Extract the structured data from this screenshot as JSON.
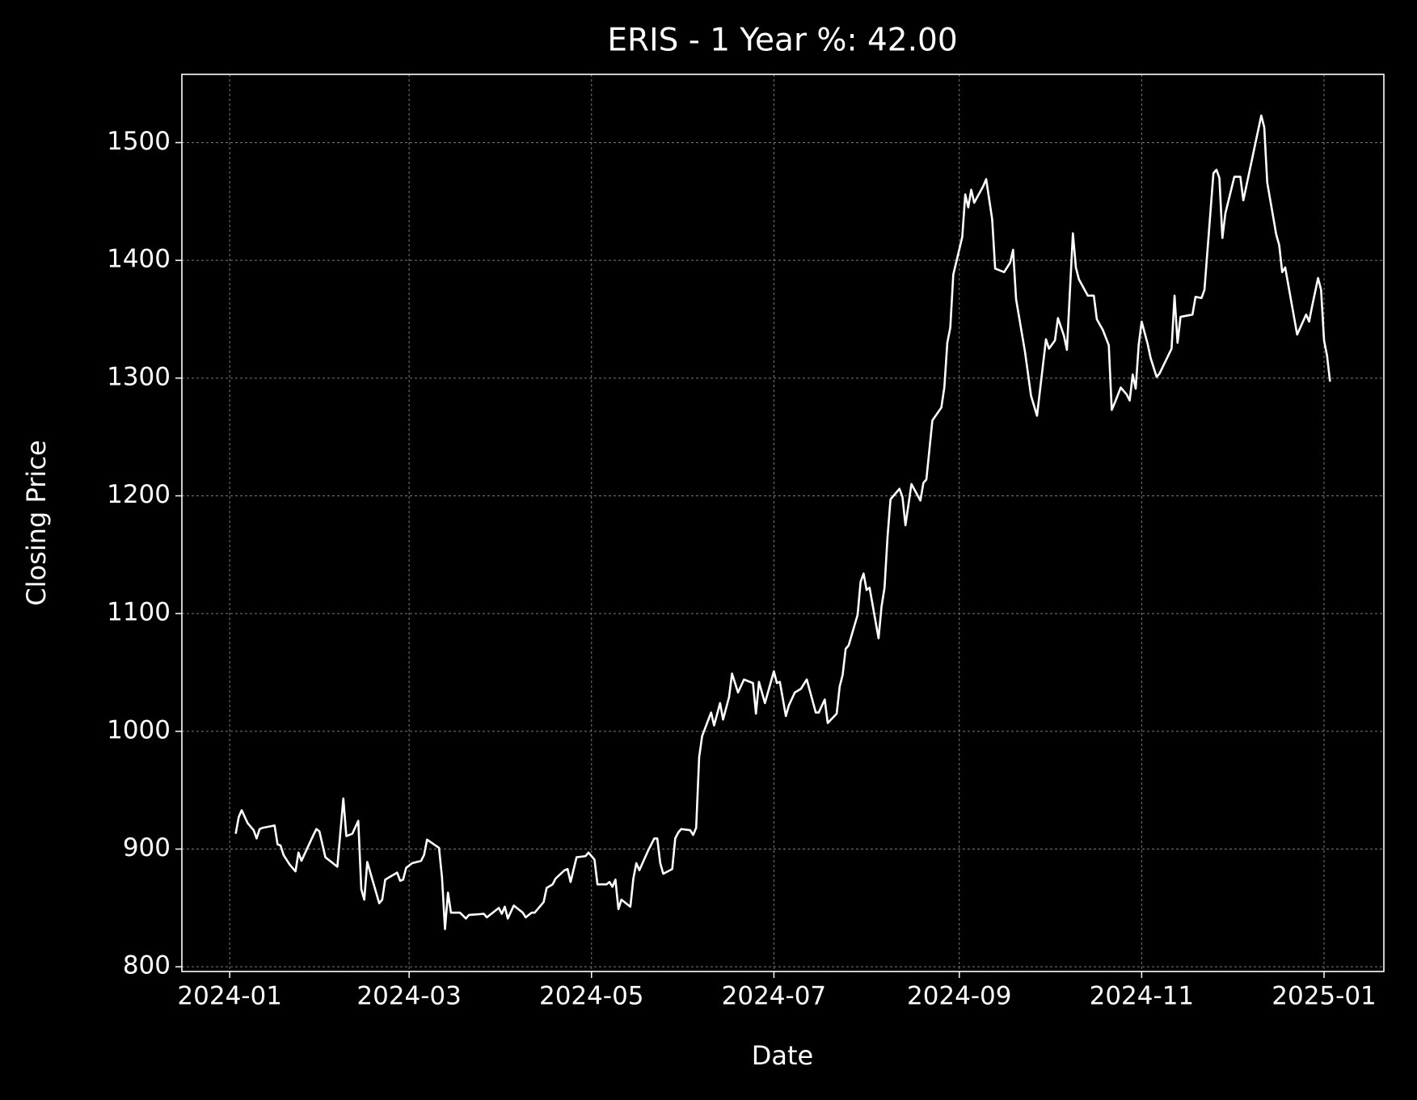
{
  "chart_data": {
    "type": "line",
    "title": "ERIS - 1 Year %: 42.00",
    "x_label": "Date",
    "y_label": "Closing Price",
    "background": "#000000",
    "grid": true,
    "xlim": [
      "2023-12-16",
      "2025-01-21"
    ],
    "xticks": [
      {
        "value": "2024-01-01",
        "label": "2024-01"
      },
      {
        "value": "2024-03-01",
        "label": "2024-03"
      },
      {
        "value": "2024-05-01",
        "label": "2024-05"
      },
      {
        "value": "2024-07-01",
        "label": "2024-07"
      },
      {
        "value": "2024-09-01",
        "label": "2024-09"
      },
      {
        "value": "2024-11-01",
        "label": "2024-11"
      },
      {
        "value": "2025-01-01",
        "label": "2025-01"
      }
    ],
    "ylim": [
      796,
      1558
    ],
    "yticks": [
      800,
      900,
      1000,
      1100,
      1200,
      1300,
      1400,
      1500
    ],
    "x": [
      "2024-01-03",
      "2024-01-04",
      "2024-01-05",
      "2024-01-07",
      "2024-01-09",
      "2024-01-10",
      "2024-01-11",
      "2024-01-12",
      "2024-01-16",
      "2024-01-17",
      "2024-01-18",
      "2024-01-19",
      "2024-01-21",
      "2024-01-23",
      "2024-01-24",
      "2024-01-25",
      "2024-01-29",
      "2024-01-30",
      "2024-01-31",
      "2024-02-02",
      "2024-02-06",
      "2024-02-08",
      "2024-02-09",
      "2024-02-11",
      "2024-02-13",
      "2024-02-14",
      "2024-02-15",
      "2024-02-16",
      "2024-02-20",
      "2024-02-21",
      "2024-02-22",
      "2024-02-26",
      "2024-02-27",
      "2024-02-28",
      "2024-02-29",
      "2024-03-02",
      "2024-03-05",
      "2024-03-06",
      "2024-03-07",
      "2024-03-11",
      "2024-03-12",
      "2024-03-13",
      "2024-03-14",
      "2024-03-15",
      "2024-03-18",
      "2024-03-20",
      "2024-03-21",
      "2024-03-26",
      "2024-03-27",
      "2024-03-31",
      "2024-04-01",
      "2024-04-02",
      "2024-04-03",
      "2024-04-05",
      "2024-04-08",
      "2024-04-09",
      "2024-04-11",
      "2024-04-12",
      "2024-04-15",
      "2024-04-16",
      "2024-04-18",
      "2024-04-19",
      "2024-04-22",
      "2024-04-23",
      "2024-04-24",
      "2024-04-26",
      "2024-04-29",
      "2024-04-30",
      "2024-05-02",
      "2024-05-03",
      "2024-05-06",
      "2024-05-07",
      "2024-05-08",
      "2024-05-09",
      "2024-05-10",
      "2024-05-11",
      "2024-05-14",
      "2024-05-15",
      "2024-05-16",
      "2024-05-17",
      "2024-05-20",
      "2024-05-22",
      "2024-05-23",
      "2024-05-24",
      "2024-05-25",
      "2024-05-28",
      "2024-05-29",
      "2024-05-30",
      "2024-05-31",
      "2024-06-03",
      "2024-06-04",
      "2024-06-05",
      "2024-06-06",
      "2024-06-07",
      "2024-06-10",
      "2024-06-11",
      "2024-06-13",
      "2024-06-14",
      "2024-06-16",
      "2024-06-17",
      "2024-06-19",
      "2024-06-21",
      "2024-06-24",
      "2024-06-25",
      "2024-06-26",
      "2024-06-28",
      "2024-07-01",
      "2024-07-02",
      "2024-07-03",
      "2024-07-05",
      "2024-07-06",
      "2024-07-08",
      "2024-07-10",
      "2024-07-12",
      "2024-07-15",
      "2024-07-16",
      "2024-07-18",
      "2024-07-19",
      "2024-07-22",
      "2024-07-23",
      "2024-07-24",
      "2024-07-25",
      "2024-07-26",
      "2024-07-29",
      "2024-07-30",
      "2024-07-31",
      "2024-08-01",
      "2024-08-02",
      "2024-08-05",
      "2024-08-06",
      "2024-08-07",
      "2024-08-08",
      "2024-08-09",
      "2024-08-12",
      "2024-08-13",
      "2024-08-14",
      "2024-08-16",
      "2024-08-19",
      "2024-08-20",
      "2024-08-21",
      "2024-08-23",
      "2024-08-26",
      "2024-08-27",
      "2024-08-28",
      "2024-08-29",
      "2024-08-30",
      "2024-09-02",
      "2024-09-03",
      "2024-09-04",
      "2024-09-05",
      "2024-09-06",
      "2024-09-09",
      "2024-09-10",
      "2024-09-12",
      "2024-09-13",
      "2024-09-16",
      "2024-09-18",
      "2024-09-19",
      "2024-09-20",
      "2024-09-23",
      "2024-09-25",
      "2024-09-27",
      "2024-09-30",
      "2024-10-01",
      "2024-10-03",
      "2024-10-04",
      "2024-10-06",
      "2024-10-07",
      "2024-10-09",
      "2024-10-10",
      "2024-10-11",
      "2024-10-14",
      "2024-10-16",
      "2024-10-17",
      "2024-10-19",
      "2024-10-21",
      "2024-10-22",
      "2024-10-23",
      "2024-10-25",
      "2024-10-27",
      "2024-10-28",
      "2024-10-29",
      "2024-10-30",
      "2024-10-31",
      "2024-11-01",
      "2024-11-03",
      "2024-11-04",
      "2024-11-06",
      "2024-11-07",
      "2024-11-11",
      "2024-11-12",
      "2024-11-13",
      "2024-11-14",
      "2024-11-18",
      "2024-11-19",
      "2024-11-21",
      "2024-11-22",
      "2024-11-25",
      "2024-11-26",
      "2024-11-27",
      "2024-11-28",
      "2024-11-29",
      "2024-12-02",
      "2024-12-04",
      "2024-12-05",
      "2024-12-09",
      "2024-12-11",
      "2024-12-12",
      "2024-12-13",
      "2024-12-16",
      "2024-12-17",
      "2024-12-18",
      "2024-12-19",
      "2024-12-23",
      "2024-12-26",
      "2024-12-27",
      "2024-12-28",
      "2024-12-30",
      "2024-12-31",
      "2025-01-01",
      "2025-01-02",
      "2025-01-03"
    ],
    "series": [
      {
        "name": "Closing Price",
        "color": "#ffffff",
        "values": [
          913,
          927,
          933,
          922,
          916,
          909,
          917,
          918,
          920,
          904,
          903,
          895,
          887,
          881,
          897,
          890,
          912,
          917,
          915,
          893,
          885,
          943,
          911,
          913,
          924,
          866,
          857,
          889,
          854,
          857,
          874,
          880,
          873,
          874,
          884,
          888,
          890,
          895,
          908,
          901,
          876,
          832,
          863,
          846,
          846,
          841,
          844,
          845,
          842,
          850,
          845,
          851,
          841,
          852,
          846,
          842,
          846,
          846,
          855,
          867,
          870,
          875,
          882,
          883,
          872,
          893,
          894,
          897,
          891,
          870,
          870,
          872,
          868,
          874,
          849,
          857,
          851,
          875,
          888,
          882,
          899,
          909,
          909,
          888,
          879,
          883,
          909,
          914,
          917,
          916,
          912,
          918,
          978,
          996,
          1016,
          1005,
          1024,
          1010,
          1029,
          1049,
          1033,
          1044,
          1041,
          1015,
          1042,
          1024,
          1051,
          1041,
          1042,
          1013,
          1022,
          1033,
          1036,
          1044,
          1016,
          1016,
          1027,
          1007,
          1015,
          1038,
          1048,
          1070,
          1073,
          1099,
          1127,
          1134,
          1120,
          1122,
          1079,
          1106,
          1122,
          1165,
          1197,
          1206,
          1199,
          1175,
          1210,
          1196,
          1211,
          1214,
          1264,
          1275,
          1292,
          1330,
          1343,
          1388,
          1420,
          1456,
          1445,
          1460,
          1449,
          1463,
          1469,
          1435,
          1393,
          1390,
          1398,
          1409,
          1367,
          1322,
          1285,
          1268,
          1333,
          1325,
          1332,
          1351,
          1336,
          1324,
          1423,
          1394,
          1384,
          1370,
          1370,
          1350,
          1341,
          1328,
          1273,
          1279,
          1292,
          1286,
          1281,
          1303,
          1291,
          1328,
          1348,
          1329,
          1317,
          1301,
          1304,
          1325,
          1370,
          1330,
          1352,
          1354,
          1369,
          1368,
          1375,
          1474,
          1477,
          1470,
          1419,
          1440,
          1471,
          1471,
          1451,
          1499,
          1523,
          1513,
          1466,
          1422,
          1413,
          1390,
          1394,
          1337,
          1354,
          1348,
          1361,
          1385,
          1375,
          1332,
          1319,
          1297
        ]
      }
    ]
  }
}
